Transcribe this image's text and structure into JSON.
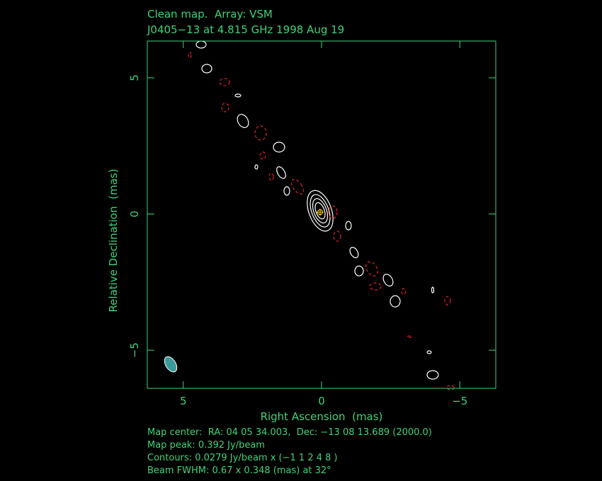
{
  "chart_data": {
    "type": "contour",
    "title": "Clean map.  Array: VSM",
    "subtitle": "J0405−13 at 4.815 GHz 1998 Aug 19",
    "x_label": "Right Ascension  (mas)",
    "y_label": "Relative Declination  (mas)",
    "xlim": [
      6.3,
      -6.3
    ],
    "ylim": [
      -6.4,
      6.35
    ],
    "xticks": [
      5,
      0,
      {
        "value": -5,
        "label": "−5"
      }
    ],
    "yticks": [
      {
        "value": -5,
        "label": "−5"
      },
      0,
      5
    ],
    "notes": [
      "Map center:  RA: 04 05 34.003,  Dec: −13 08 13.689 (2000.0)",
      "Map peak: 0.392 Jy/beam",
      "Contours: 0.0279 Jy/beam x (−1 1 2 4 8 )",
      "Beam FWHM: 0.67 x 0.348 (mas) at 32°"
    ]
  }
}
